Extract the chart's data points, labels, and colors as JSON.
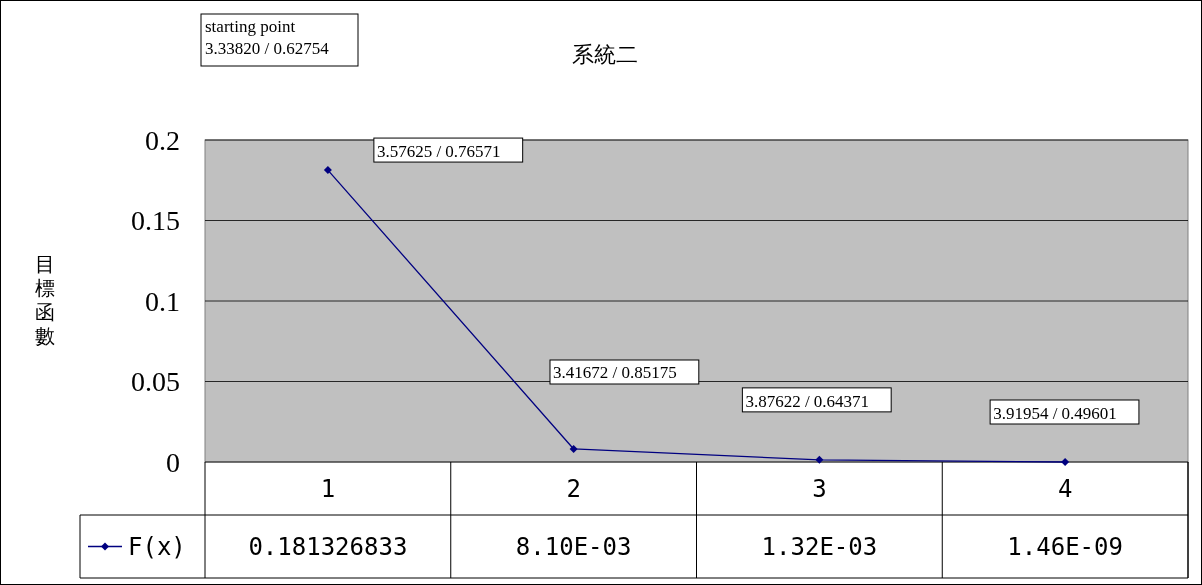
{
  "chart_data": {
    "type": "line",
    "title": "系統二",
    "ylabel": "目標函數",
    "categories": [
      "1",
      "2",
      "3",
      "4"
    ],
    "series": [
      {
        "name": "F(x)",
        "color": "#000080",
        "values": [
          0.181326833,
          0.0081,
          0.00132,
          1.46e-09
        ],
        "value_labels": [
          "0.181326833",
          "8.10E-03",
          "1.32E-03",
          "1.46E-09"
        ]
      }
    ],
    "ylim": [
      0,
      0.2
    ],
    "yticks": [
      0,
      0.05,
      0.1,
      0.15,
      0.2
    ],
    "grid": "y",
    "marker": "diamond",
    "line_style": "solid",
    "legend": "bottom left",
    "data_labels": true,
    "annotations": [
      "starting point\n3.33820 / 0.62754",
      {
        "text": "3.57625 / 0.76571",
        "x": "1",
        "y": 0.181326833
      },
      "3.41672 / 0.85175",
      {
        "text": "3.87622 / 0.64371",
        "x": "3",
        "y": 0.00132
      },
      {
        "text": "3.91954 / 0.49601",
        "x": "4",
        "y": 1.46e-09
      }
    ]
  }
}
